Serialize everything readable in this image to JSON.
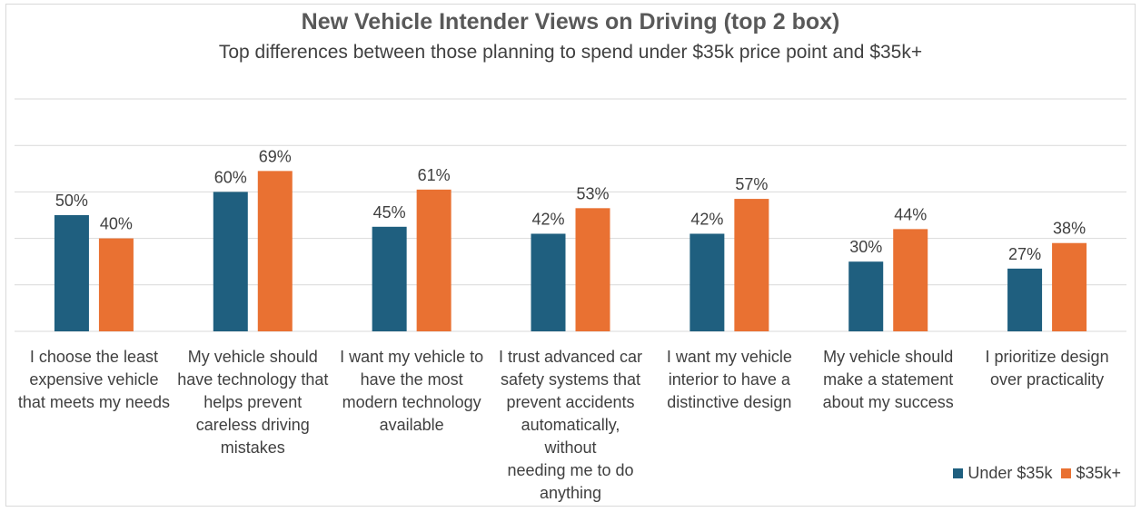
{
  "chart_data": {
    "type": "bar",
    "title": "New Vehicle Intender Views on Driving (top 2 box)",
    "subtitle": "Top differences between those planning to spend under $35k price point and $35k+",
    "categories": [
      [
        "I choose the least",
        "expensive vehicle",
        "that meets my needs"
      ],
      [
        "My vehicle should",
        "have technology that",
        "helps prevent",
        "careless driving",
        "mistakes"
      ],
      [
        "I want my vehicle to",
        "have the most",
        "modern technology",
        "available"
      ],
      [
        "I trust advanced car",
        "safety systems that",
        "prevent accidents",
        "automatically, without",
        "needing me to do",
        "anything"
      ],
      [
        "I want my vehicle",
        "interior to have a",
        "distinctive design"
      ],
      [
        "My vehicle should",
        "make a statement",
        "about my success"
      ],
      [
        "I prioritize design",
        "over practicality"
      ]
    ],
    "series": [
      {
        "name": "Under $35k",
        "color": "#1f5f7f",
        "values": [
          50,
          60,
          45,
          42,
          42,
          30,
          27
        ],
        "labels": [
          "50%",
          "60%",
          "45%",
          "42%",
          "42%",
          "30%",
          "27%"
        ]
      },
      {
        "name": "$35k+",
        "color": "#e97132",
        "values": [
          40,
          69,
          61,
          53,
          57,
          44,
          38
        ],
        "labels": [
          "40%",
          "69%",
          "61%",
          "53%",
          "57%",
          "44%",
          "38%"
        ]
      }
    ],
    "ylim": [
      0,
      100
    ],
    "grid": true,
    "legend_position": "bottom-right"
  }
}
